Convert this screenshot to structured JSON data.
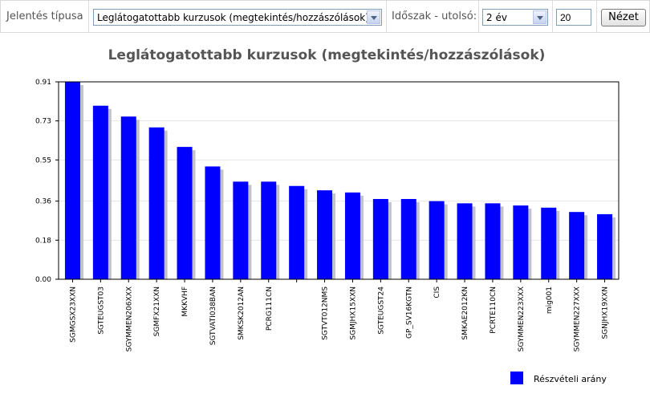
{
  "toolbar": {
    "report_type_label": "Jelentés típusa",
    "report_type_value": "Leglátogatottabb kurzusok (megtekintés/hozzászólások)",
    "period_label": "Időszak - utolsó:",
    "period_value": "2 év",
    "count_value": "20",
    "view_button": "Nézet"
  },
  "colors": {
    "bar": "#0000ff",
    "bar_shadow": "#c2c2cc",
    "grid": "#e6e6e6"
  },
  "chart_data": {
    "type": "bar",
    "title": "Leglátogatottabb kurzusok (megtekintés/hozzászólások)",
    "xlabel": "",
    "ylabel": "",
    "ylim": [
      0,
      0.91
    ],
    "yticks": [
      "0.00",
      "0.18",
      "0.36",
      "0.55",
      "0.73",
      "0.91"
    ],
    "grid": true,
    "legend_position": "bottom-right",
    "categories": [
      "SGMGSX23XXN",
      "SGTEUGST03",
      "SGYMMEN206XXX",
      "SGMFX21XXN",
      "MKKVHF",
      "SGTVATI038BAN",
      "SMKSK2012AN",
      "PCRG111CN",
      "",
      "SGTVT012NMS",
      "SGMJHX15XXN",
      "SGTEUGST24",
      "GP_SV16KGTN",
      "CIS",
      "SMKAE2012KN",
      "PCRTE110CN",
      "SGYMMEN223XXX",
      "mig001",
      "SGYMMEN227XXX",
      "SGNJHX19XXN"
    ],
    "series": [
      {
        "name": "Részvételi arány",
        "values": [
          0.91,
          0.8,
          0.75,
          0.7,
          0.61,
          0.52,
          0.45,
          0.45,
          0.43,
          0.41,
          0.4,
          0.37,
          0.37,
          0.36,
          0.35,
          0.35,
          0.34,
          0.33,
          0.31,
          0.3
        ]
      }
    ]
  }
}
